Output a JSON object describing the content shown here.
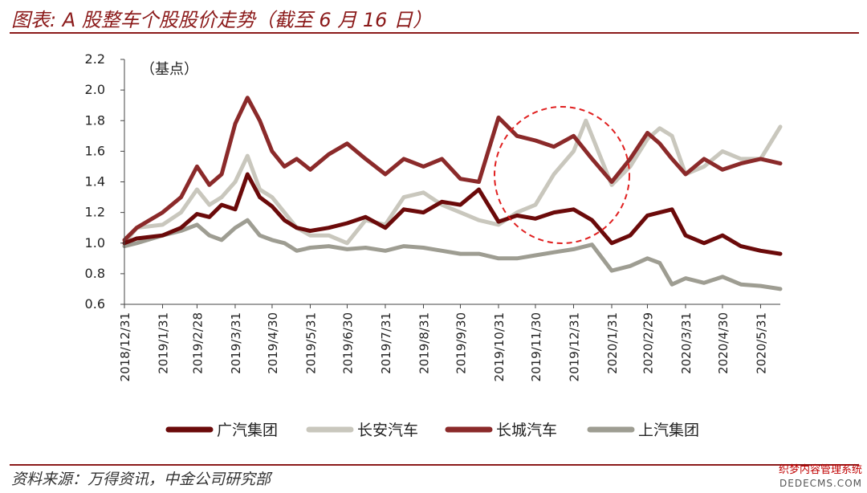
{
  "page": {
    "title": "图表: A 股整车个股股价走势（截至 6 月 16 日）",
    "source": "资料来源：万得资讯，中金公司研究部",
    "watermark_line1": "织梦内容管理系统",
    "watermark_line2": "DEDECMS.COM"
  },
  "chart_data": {
    "type": "line",
    "unit_label": "（基点）",
    "ylim": [
      0.6,
      2.2
    ],
    "yticks": [
      "0.6",
      "0.8",
      "1.0",
      "1.2",
      "1.4",
      "1.6",
      "1.8",
      "2.0",
      "2.2"
    ],
    "x_tick_labels": [
      "2018/12/31",
      "2019/1/31",
      "2019/2/28",
      "2019/3/31",
      "2019/4/30",
      "2019/5/31",
      "2019/6/30",
      "2019/7/31",
      "2019/8/31",
      "2019/9/30",
      "2019/10/31",
      "2019/11/30",
      "2019/12/31",
      "2020/1/31",
      "2020/2/29",
      "2020/3/31",
      "2020/4/30",
      "2020/5/31"
    ],
    "x_end": "2020/6/16",
    "grid": false,
    "legend_position": "bottom",
    "annotation": "red dashed circle highlighting 2019/11–2020/1",
    "series": [
      {
        "name": "广汽集团",
        "color": "#6B0A0A",
        "dates": [
          "2018/12/31",
          "2019/1/10",
          "2019/1/31",
          "2019/2/15",
          "2019/2/28",
          "2019/3/10",
          "2019/3/20",
          "2019/3/31",
          "2019/4/10",
          "2019/4/20",
          "2019/4/30",
          "2019/5/10",
          "2019/5/20",
          "2019/5/31",
          "2019/6/15",
          "2019/6/30",
          "2019/7/15",
          "2019/7/31",
          "2019/8/15",
          "2019/8/31",
          "2019/9/15",
          "2019/9/30",
          "2019/10/15",
          "2019/10/31",
          "2019/11/15",
          "2019/11/30",
          "2019/12/15",
          "2019/12/31",
          "2020/1/15",
          "2020/1/31",
          "2020/2/15",
          "2020/2/29",
          "2020/3/10",
          "2020/3/20",
          "2020/3/31",
          "2020/4/15",
          "2020/4/30",
          "2020/5/15",
          "2020/5/31",
          "2020/6/16"
        ],
        "values": [
          1.0,
          1.03,
          1.05,
          1.1,
          1.19,
          1.17,
          1.25,
          1.22,
          1.45,
          1.3,
          1.24,
          1.15,
          1.1,
          1.08,
          1.1,
          1.13,
          1.17,
          1.1,
          1.22,
          1.2,
          1.27,
          1.25,
          1.35,
          1.14,
          1.18,
          1.16,
          1.2,
          1.22,
          1.15,
          1.0,
          1.05,
          1.18,
          1.2,
          1.22,
          1.05,
          1.0,
          1.05,
          0.98,
          0.95,
          0.93
        ]
      },
      {
        "name": "长安汽车",
        "color": "#C9C7BD",
        "dates": [
          "2018/12/31",
          "2019/1/10",
          "2019/1/31",
          "2019/2/15",
          "2019/2/28",
          "2019/3/10",
          "2019/3/20",
          "2019/3/31",
          "2019/4/10",
          "2019/4/20",
          "2019/4/30",
          "2019/5/10",
          "2019/5/20",
          "2019/5/31",
          "2019/6/15",
          "2019/6/30",
          "2019/7/15",
          "2019/7/31",
          "2019/8/15",
          "2019/8/31",
          "2019/9/15",
          "2019/9/30",
          "2019/10/15",
          "2019/10/31",
          "2019/11/15",
          "2019/11/30",
          "2019/12/15",
          "2019/12/31",
          "2020/1/10",
          "2020/1/31",
          "2020/2/15",
          "2020/2/29",
          "2020/3/10",
          "2020/3/20",
          "2020/3/31",
          "2020/4/15",
          "2020/4/30",
          "2020/5/15",
          "2020/5/31",
          "2020/6/16"
        ],
        "values": [
          1.0,
          1.1,
          1.12,
          1.2,
          1.35,
          1.25,
          1.3,
          1.4,
          1.57,
          1.35,
          1.3,
          1.2,
          1.1,
          1.05,
          1.05,
          1.0,
          1.15,
          1.12,
          1.3,
          1.33,
          1.25,
          1.2,
          1.15,
          1.12,
          1.2,
          1.25,
          1.45,
          1.6,
          1.8,
          1.38,
          1.5,
          1.68,
          1.75,
          1.7,
          1.45,
          1.5,
          1.6,
          1.55,
          1.55,
          1.76
        ]
      },
      {
        "name": "长城汽车",
        "color": "#8B2A2A",
        "dates": [
          "2018/12/31",
          "2019/1/10",
          "2019/1/31",
          "2019/2/15",
          "2019/2/28",
          "2019/3/10",
          "2019/3/20",
          "2019/3/31",
          "2019/4/10",
          "2019/4/20",
          "2019/4/30",
          "2019/5/10",
          "2019/5/20",
          "2019/5/31",
          "2019/6/15",
          "2019/6/30",
          "2019/7/15",
          "2019/7/31",
          "2019/8/15",
          "2019/8/31",
          "2019/9/15",
          "2019/9/30",
          "2019/10/15",
          "2019/10/31",
          "2019/11/15",
          "2019/11/30",
          "2019/12/15",
          "2019/12/31",
          "2020/1/15",
          "2020/1/31",
          "2020/2/15",
          "2020/2/29",
          "2020/3/10",
          "2020/3/20",
          "2020/3/31",
          "2020/4/15",
          "2020/4/30",
          "2020/5/15",
          "2020/5/31",
          "2020/6/16"
        ],
        "values": [
          1.02,
          1.1,
          1.2,
          1.3,
          1.5,
          1.38,
          1.45,
          1.78,
          1.95,
          1.8,
          1.6,
          1.5,
          1.55,
          1.48,
          1.58,
          1.65,
          1.55,
          1.45,
          1.55,
          1.5,
          1.55,
          1.42,
          1.4,
          1.82,
          1.7,
          1.67,
          1.63,
          1.7,
          1.55,
          1.4,
          1.55,
          1.72,
          1.65,
          1.55,
          1.45,
          1.55,
          1.48,
          1.52,
          1.55,
          1.52
        ]
      },
      {
        "name": "上汽集团",
        "color": "#9E9D92",
        "dates": [
          "2018/12/31",
          "2019/1/10",
          "2019/1/31",
          "2019/2/15",
          "2019/2/28",
          "2019/3/10",
          "2019/3/20",
          "2019/3/31",
          "2019/4/10",
          "2019/4/20",
          "2019/4/30",
          "2019/5/10",
          "2019/5/20",
          "2019/5/31",
          "2019/6/15",
          "2019/6/30",
          "2019/7/15",
          "2019/7/31",
          "2019/8/15",
          "2019/8/31",
          "2019/9/15",
          "2019/9/30",
          "2019/10/15",
          "2019/10/31",
          "2019/11/15",
          "2019/11/30",
          "2019/12/15",
          "2019/12/31",
          "2020/1/15",
          "2020/1/31",
          "2020/2/15",
          "2020/2/29",
          "2020/3/10",
          "2020/3/20",
          "2020/3/31",
          "2020/4/15",
          "2020/4/30",
          "2020/5/15",
          "2020/5/31",
          "2020/6/16"
        ],
        "values": [
          0.98,
          1.0,
          1.05,
          1.08,
          1.12,
          1.05,
          1.02,
          1.1,
          1.15,
          1.05,
          1.02,
          1.0,
          0.95,
          0.97,
          0.98,
          0.96,
          0.97,
          0.95,
          0.98,
          0.97,
          0.95,
          0.93,
          0.93,
          0.9,
          0.9,
          0.92,
          0.94,
          0.96,
          0.99,
          0.82,
          0.85,
          0.9,
          0.87,
          0.73,
          0.77,
          0.74,
          0.78,
          0.73,
          0.72,
          0.7
        ]
      }
    ]
  }
}
